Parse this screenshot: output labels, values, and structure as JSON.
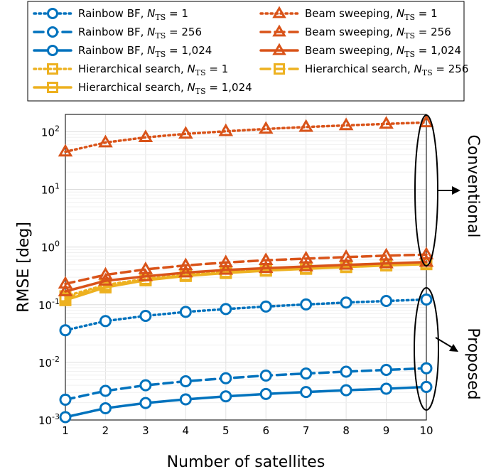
{
  "chart_data": {
    "type": "line",
    "title": "",
    "xlabel": "Number of satellites",
    "ylabel": "RMSE [deg]",
    "x": [
      1,
      2,
      3,
      4,
      5,
      6,
      7,
      8,
      9,
      10
    ],
    "xlim": [
      1,
      10
    ],
    "ylim": [
      0.001,
      200
    ],
    "yscale": "log",
    "grid": true,
    "x_ticks": [
      "1",
      "2",
      "3",
      "4",
      "5",
      "6",
      "7",
      "8",
      "9",
      "10"
    ],
    "y_ticks": [
      {
        "base": "10",
        "exp": "-3",
        "value": 0.001
      },
      {
        "base": "10",
        "exp": "-2",
        "value": 0.01
      },
      {
        "base": "10",
        "exp": "-1",
        "value": 0.1
      },
      {
        "base": "10",
        "exp": "0",
        "value": 1
      },
      {
        "base": "10",
        "exp": "1",
        "value": 10
      },
      {
        "base": "10",
        "exp": "2",
        "value": 100
      }
    ],
    "series": [
      {
        "name_main": "Rainbow BF, ",
        "nts": "1",
        "color": "#0072BD",
        "style": "dotted",
        "marker": "circle",
        "values": [
          0.036,
          0.052,
          0.064,
          0.075,
          0.084,
          0.093,
          0.101,
          0.109,
          0.116,
          0.123
        ]
      },
      {
        "name_main": "Rainbow BF, ",
        "nts": "256",
        "color": "#0072BD",
        "style": "dashed",
        "marker": "circle",
        "values": [
          0.00225,
          0.0032,
          0.004,
          0.0047,
          0.0053,
          0.0059,
          0.0064,
          0.0069,
          0.0074,
          0.0079
        ]
      },
      {
        "name_main": "Rainbow BF, ",
        "nts": "1,024",
        "color": "#0072BD",
        "style": "solid",
        "marker": "circle",
        "values": [
          0.00112,
          0.0016,
          0.00197,
          0.00228,
          0.00257,
          0.00283,
          0.00306,
          0.00328,
          0.00349,
          0.00375
        ]
      },
      {
        "name_main": "Hierarchical search, ",
        "nts": "1",
        "color": "#EDB120",
        "style": "dotted",
        "marker": "square",
        "values": [
          0.14,
          0.22,
          0.28,
          0.33,
          0.37,
          0.4,
          0.43,
          0.46,
          0.49,
          0.52
        ]
      },
      {
        "name_main": "Hierarchical search, ",
        "nts": "256",
        "color": "#EDB120",
        "style": "dashed",
        "marker": "square",
        "values": [
          0.13,
          0.21,
          0.27,
          0.32,
          0.36,
          0.395,
          0.425,
          0.455,
          0.485,
          0.51
        ]
      },
      {
        "name_main": "Hierarchical search, ",
        "nts": "1,024",
        "color": "#EDB120",
        "style": "solid",
        "marker": "square",
        "values": [
          0.12,
          0.2,
          0.265,
          0.315,
          0.355,
          0.39,
          0.42,
          0.45,
          0.48,
          0.505
        ]
      },
      {
        "name_main": "Beam sweeping, ",
        "nts": "1",
        "color": "#D95319",
        "style": "dotted",
        "marker": "triangle",
        "values": [
          45,
          65,
          80,
          92,
          102,
          112,
          121,
          129,
          137,
          145
        ]
      },
      {
        "name_main": "Beam sweeping, ",
        "nts": "256",
        "color": "#D95319",
        "style": "dashed",
        "marker": "triangle",
        "values": [
          0.23,
          0.33,
          0.41,
          0.48,
          0.54,
          0.59,
          0.63,
          0.67,
          0.71,
          0.74
        ]
      },
      {
        "name_main": "Beam sweeping, ",
        "nts": "1,024",
        "color": "#D95319",
        "style": "solid",
        "marker": "triangle",
        "values": [
          0.17,
          0.26,
          0.31,
          0.36,
          0.4,
          0.43,
          0.46,
          0.49,
          0.52,
          0.55
        ]
      }
    ],
    "legend_order": [
      0,
      6,
      1,
      7,
      2,
      8,
      3,
      4,
      5
    ],
    "legend_placement": "top",
    "legend_subscript_label": "N",
    "legend_subscript": "TS",
    "legend_equals": " = ",
    "annotations": [
      {
        "text": "Conventional",
        "target": "upper group at 10 satellites"
      },
      {
        "text": "Proposed",
        "target": "lower group at 10 satellites"
      }
    ]
  }
}
